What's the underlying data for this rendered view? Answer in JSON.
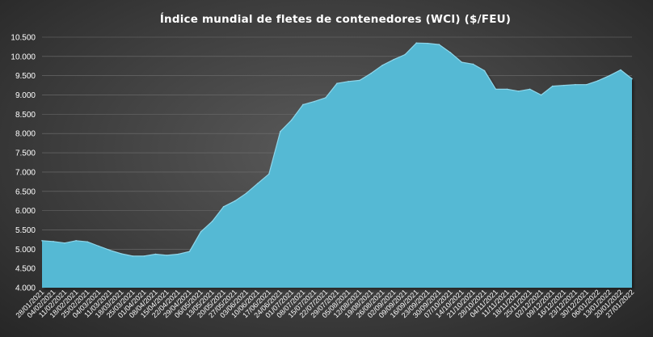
{
  "chart_data": {
    "type": "area",
    "title": "Índice mundial de fletes de contenedores (WCI) ($/FEU)",
    "xlabel": "",
    "ylabel": "",
    "ylim": [
      4000,
      10500
    ],
    "yticks": [
      4000,
      4500,
      5000,
      5500,
      6000,
      6500,
      7000,
      7500,
      8000,
      8500,
      9000,
      9500,
      10000,
      10500
    ],
    "ytick_labels": [
      "4.000",
      "4.500",
      "5.000",
      "5.500",
      "6.000",
      "6.500",
      "7.000",
      "7.500",
      "8.000",
      "8.500",
      "9.000",
      "9.500",
      "10.000",
      "10.500"
    ],
    "grid": true,
    "colors": {
      "fill": "#55b9d4",
      "edge": "#8fd6ea"
    },
    "x": [
      "28/01/2021",
      "04/02/2021",
      "11/02/2021",
      "18/02/2021",
      "25/02/2021",
      "04/03/2021",
      "11/03/2021",
      "18/03/2021",
      "25/03/2021",
      "01/04/2021",
      "08/04/2021",
      "15/04/2021",
      "22/04/2021",
      "29/04/2021",
      "06/05/2021",
      "13/05/2021",
      "20/05/2021",
      "27/05/2021",
      "03/06/2021",
      "10/06/2021",
      "17/06/2021",
      "24/06/2021",
      "01/07/2021",
      "08/07/2021",
      "15/07/2021",
      "22/07/2021",
      "29/07/2021",
      "05/08/2021",
      "12/08/2021",
      "19/08/2021",
      "26/08/2021",
      "02/09/2021",
      "09/09/2021",
      "16/09/2021",
      "23/09/2021",
      "30/09/2021",
      "07/10/2021",
      "14/10/2021",
      "21/10/2021",
      "28/10/2021",
      "04/11/2021",
      "11/11/2021",
      "18/11/2021",
      "25/11/2021",
      "02/12/2021",
      "09/12/2021",
      "16/12/2021",
      "23/12/2021",
      "30/12/2021",
      "06/01/2022",
      "13/01/2022",
      "20/01/2022",
      "27/01/2022"
    ],
    "series": [
      {
        "values": [
          5220,
          5200,
          5160,
          5220,
          5190,
          5080,
          4970,
          4880,
          4820,
          4820,
          4870,
          4840,
          4870,
          4940,
          5450,
          5720,
          6100,
          6250,
          6450,
          6700,
          6950,
          8050,
          8350,
          8750,
          8830,
          8930,
          9300,
          9350,
          9380,
          9560,
          9770,
          9920,
          10050,
          10350,
          10340,
          10310,
          10100,
          9850,
          9800,
          9630,
          9150,
          9150,
          9100,
          9150,
          9000,
          9230,
          9250,
          9270,
          9270,
          9370,
          9500,
          9650,
          9420
        ]
      }
    ]
  }
}
